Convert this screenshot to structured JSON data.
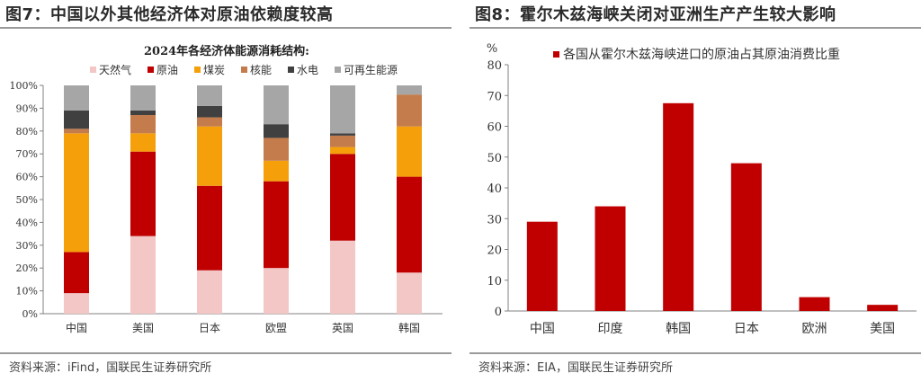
{
  "left": {
    "figure_title": "图7：中国以外其他经济体对原油依赖度较高",
    "source": "资料来源：iFind，国联民生证券研究所"
  },
  "right": {
    "figure_title": "图8：霍尔木兹海峡关闭对亚洲生产产生较大影响",
    "source": "资料来源：EIA，国联民生证券研究所"
  },
  "chart_data": [
    {
      "type": "bar",
      "stacked": true,
      "title": "2024年各经济体能源消耗结构:",
      "categories": [
        "中国",
        "美国",
        "日本",
        "欧盟",
        "英国",
        "韩国"
      ],
      "ylim": [
        0,
        100
      ],
      "yticks": [
        "0%",
        "10%",
        "20%",
        "30%",
        "40%",
        "50%",
        "60%",
        "70%",
        "80%",
        "90%",
        "100%"
      ],
      "legend_position": "top",
      "grid": false,
      "series": [
        {
          "name": "天然气",
          "color": "#f2c7c6",
          "values": [
            9,
            34,
            19,
            20,
            32,
            18
          ]
        },
        {
          "name": "原油",
          "color": "#c00000",
          "values": [
            18,
            37,
            37,
            38,
            38,
            42
          ]
        },
        {
          "name": "煤炭",
          "color": "#f5a00b",
          "values": [
            52,
            8,
            26,
            9,
            3,
            22
          ]
        },
        {
          "name": "核能",
          "color": "#c47c4c",
          "values": [
            2,
            8,
            4,
            10,
            5,
            14
          ]
        },
        {
          "name": "水电",
          "color": "#404040",
          "values": [
            8,
            2,
            5,
            6,
            1,
            0
          ]
        },
        {
          "name": "可再生能源",
          "color": "#a6a6a6",
          "values": [
            11,
            11,
            9,
            17,
            21,
            4
          ]
        }
      ]
    },
    {
      "type": "bar",
      "title": "",
      "categories": [
        "中国",
        "印度",
        "韩国",
        "日本",
        "欧洲",
        "美国"
      ],
      "ylabel": "%",
      "ylim": [
        0,
        80
      ],
      "yticks": [
        "0",
        "10",
        "20",
        "30",
        "40",
        "50",
        "60",
        "70",
        "80"
      ],
      "legend_position": "top",
      "grid": false,
      "series": [
        {
          "name": "各国从霍尔木兹海峡进口的原油占其原油消费比重",
          "color": "#c00000",
          "values": [
            29,
            34,
            67.5,
            48,
            4.5,
            2
          ]
        }
      ]
    }
  ]
}
